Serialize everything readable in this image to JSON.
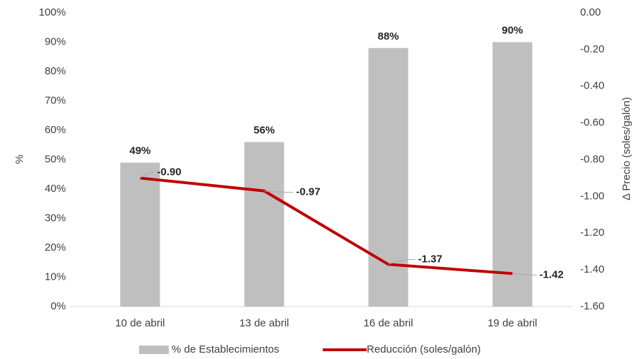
{
  "chart_data": {
    "type": "bar_line",
    "categories": [
      "10 de abril",
      "13 de abril",
      "16 de abril",
      "19 de abril"
    ],
    "ylabel": "%",
    "y2label": "Δ Precio (soles/galón)",
    "ylim": [
      0,
      100
    ],
    "yticks": [
      {
        "value": 0,
        "label": "0%"
      },
      {
        "value": 10,
        "label": "10%"
      },
      {
        "value": 20,
        "label": "20%"
      },
      {
        "value": 30,
        "label": "30%"
      },
      {
        "value": 40,
        "label": "40%"
      },
      {
        "value": 50,
        "label": "50%"
      },
      {
        "value": 60,
        "label": "60%"
      },
      {
        "value": 70,
        "label": "70%"
      },
      {
        "value": 80,
        "label": "80%"
      },
      {
        "value": 90,
        "label": "90%"
      },
      {
        "value": 100,
        "label": "100%"
      }
    ],
    "y2lim": [
      -1.6,
      0
    ],
    "y2ticks": [
      {
        "value": 0,
        "label": "0.00"
      },
      {
        "value": -0.2,
        "label": "-0.20"
      },
      {
        "value": -0.4,
        "label": "-0.40"
      },
      {
        "value": -0.6,
        "label": "-0.60"
      },
      {
        "value": -0.8,
        "label": "-0.80"
      },
      {
        "value": -1.0,
        "label": "-1.00"
      },
      {
        "value": -1.2,
        "label": "-1.20"
      },
      {
        "value": -1.4,
        "label": "-1.40"
      },
      {
        "value": -1.6,
        "label": "-1.60"
      }
    ],
    "series": [
      {
        "name": "% de Establecimientos",
        "type": "bar",
        "color": "#bfbfbf",
        "values": [
          49,
          56,
          88,
          90
        ],
        "value_labels": [
          "49%",
          "56%",
          "88%",
          "90%"
        ]
      },
      {
        "name": "Reducción (soles/galón)",
        "type": "line",
        "axis": "y2",
        "color": "#c00000",
        "values": [
          -0.9,
          -0.97,
          -1.37,
          -1.42
        ],
        "value_labels": [
          "-0.90",
          "-0.97",
          "-1.37",
          "-1.42"
        ]
      }
    ]
  }
}
